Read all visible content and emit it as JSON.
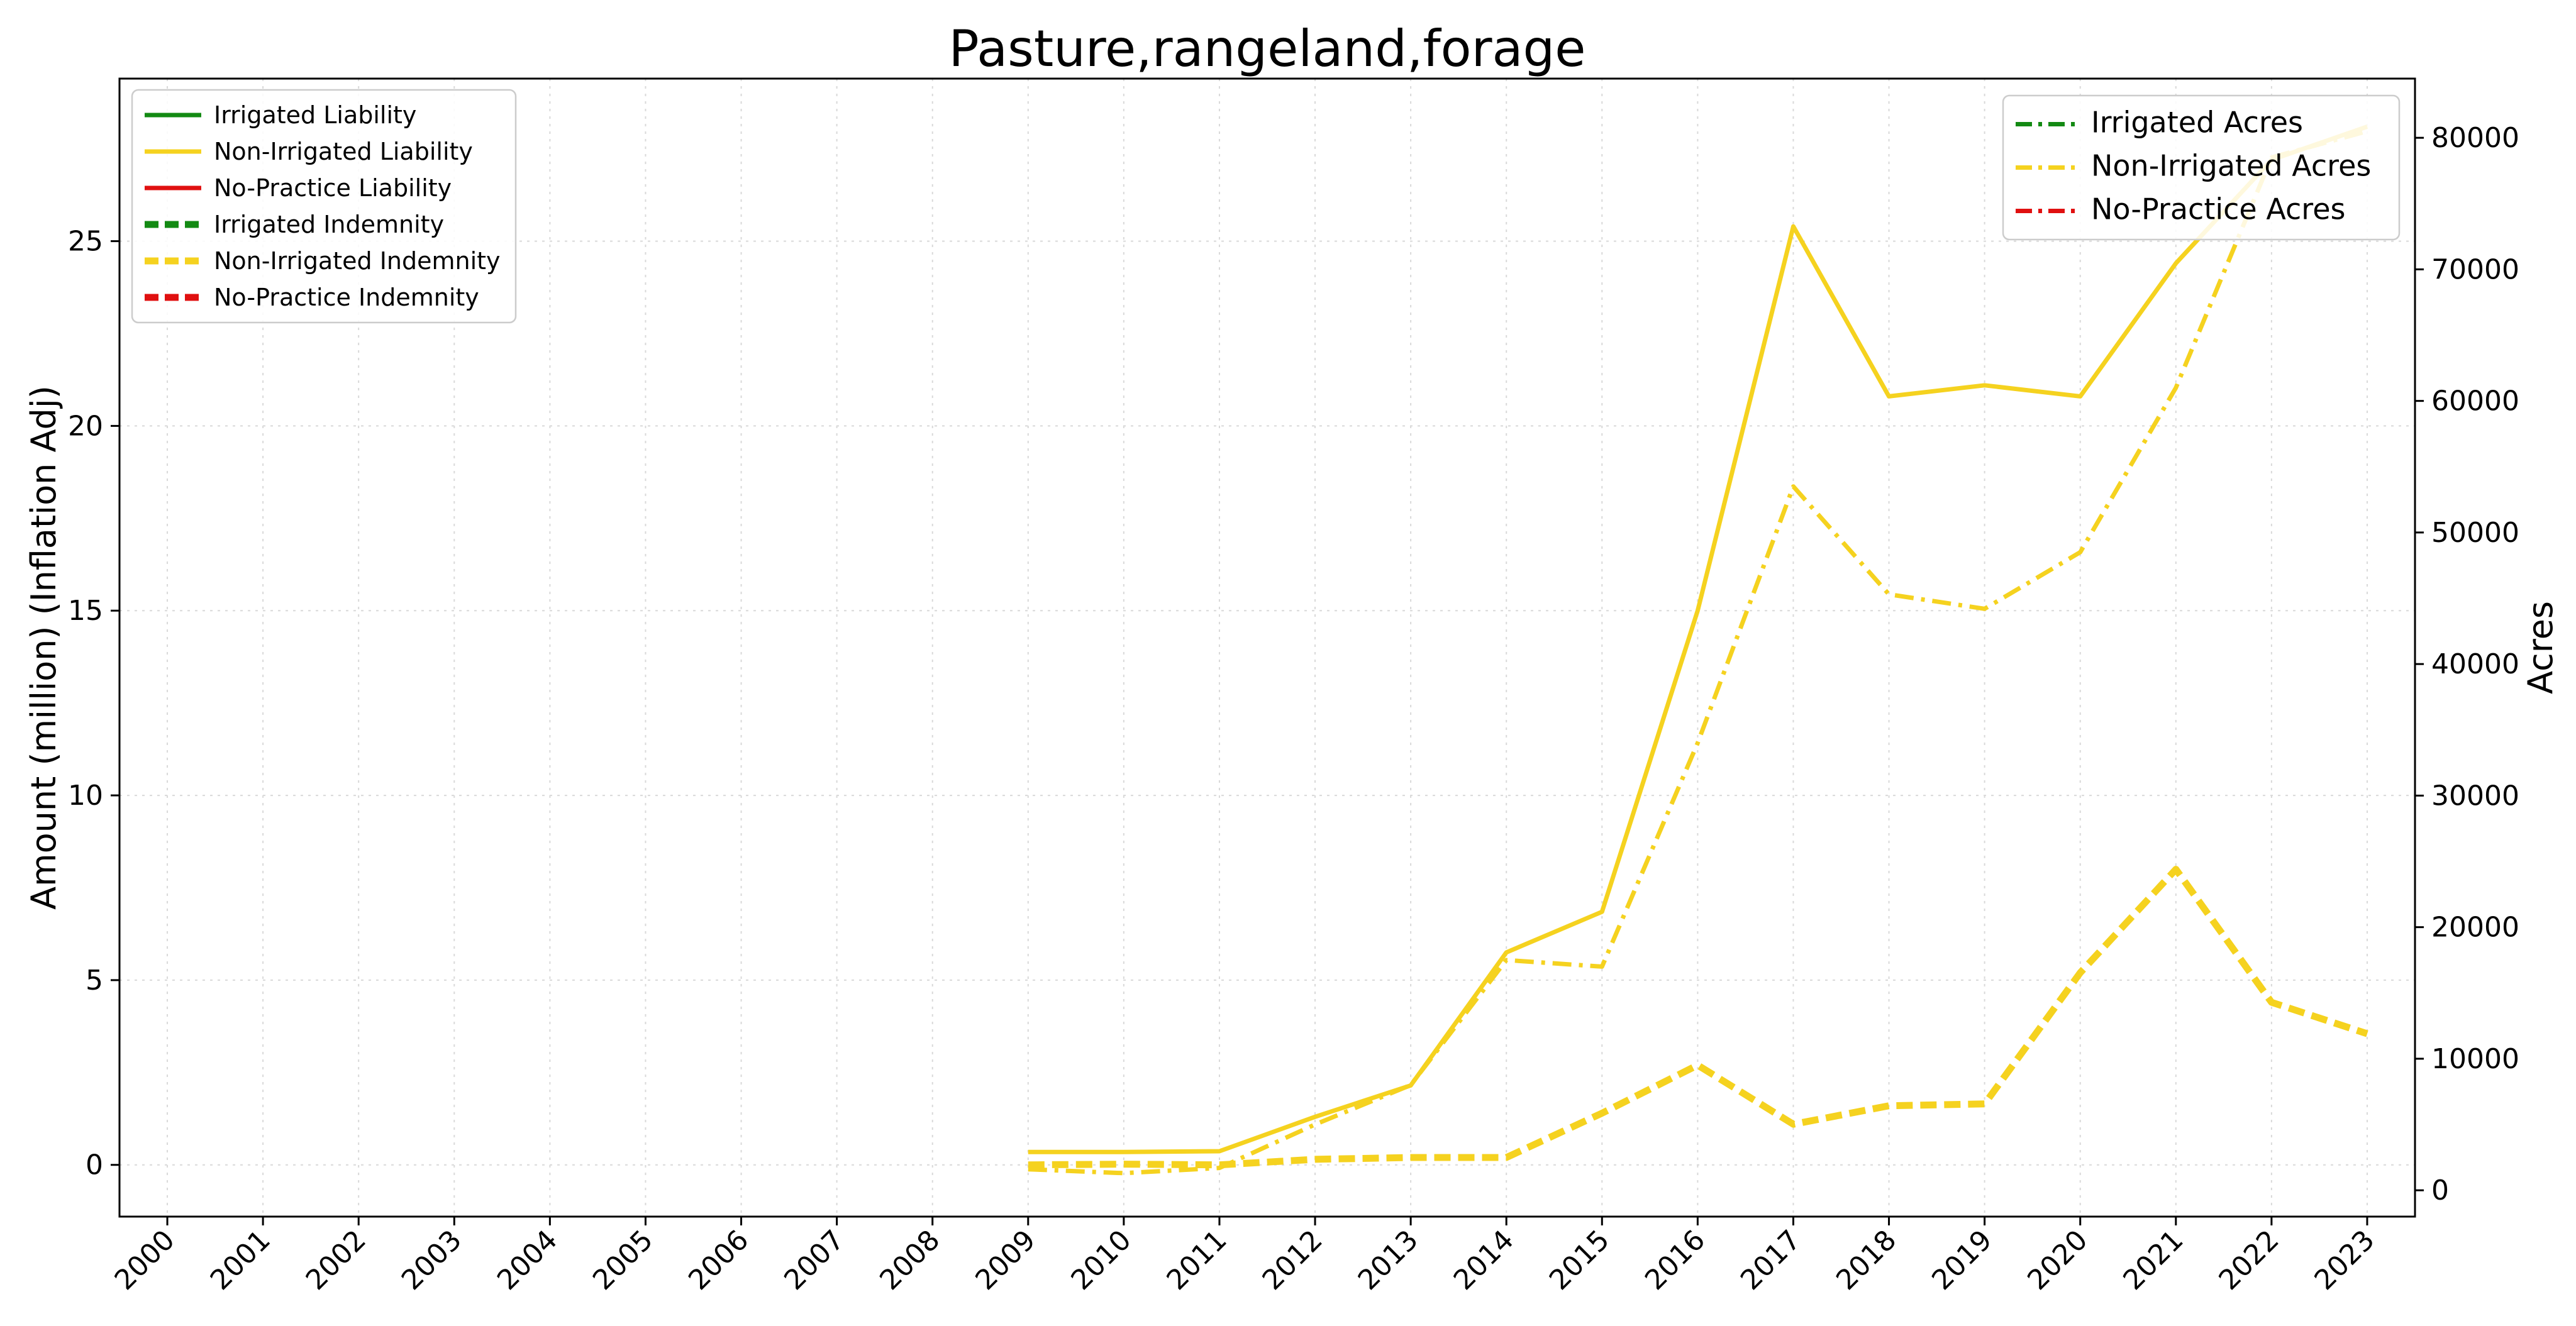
{
  "chart_data": {
    "type": "line",
    "title": "Pasture,rangeland,forage",
    "xlabel": "",
    "ylabel": "Amount (million) (Inflation Adj)",
    "y2label": "Acres",
    "x": [
      "2000",
      "2001",
      "2002",
      "2003",
      "2004",
      "2005",
      "2006",
      "2007",
      "2008",
      "2009",
      "2010",
      "2011",
      "2012",
      "2013",
      "2014",
      "2015",
      "2016",
      "2017",
      "2018",
      "2019",
      "2020",
      "2021",
      "2022",
      "2023"
    ],
    "xlim": [
      2000,
      2023
    ],
    "ylim": [
      -1.4,
      29.4
    ],
    "y2lim": [
      -2000,
      84500
    ],
    "yticks": [
      0,
      5,
      10,
      15,
      20,
      25
    ],
    "y2ticks": [
      0,
      10000,
      20000,
      30000,
      40000,
      50000,
      60000,
      70000,
      80000
    ],
    "grid": true,
    "legend_left_placement": "top-left",
    "legend_right_placement": "top-right",
    "colors": {
      "irrigated": "#138a13",
      "non_irrigated": "#f5d21f",
      "no_practice": "#e01010",
      "grid": "#d9d9d9"
    },
    "series": [
      {
        "name": "Irrigated Liability",
        "axis": "left",
        "style": "solid",
        "color_key": "irrigated",
        "x": [],
        "values": []
      },
      {
        "name": "Non-Irrigated Liability",
        "axis": "left",
        "style": "solid",
        "color_key": "non_irrigated",
        "x": [
          2009,
          2010,
          2011,
          2012,
          2013,
          2014,
          2015,
          2016,
          2017,
          2018,
          2019,
          2020,
          2021,
          2022,
          2023
        ],
        "values": [
          0.35,
          0.35,
          0.37,
          1.3,
          2.15,
          5.75,
          6.85,
          15.0,
          25.4,
          20.8,
          21.1,
          20.8,
          24.4,
          27.2,
          28.1
        ]
      },
      {
        "name": "No-Practice Liability",
        "axis": "left",
        "style": "solid",
        "color_key": "no_practice",
        "x": [],
        "values": []
      },
      {
        "name": "Irrigated Indemnity",
        "axis": "left",
        "style": "dashed",
        "color_key": "irrigated",
        "x": [],
        "values": []
      },
      {
        "name": "Non-Irrigated Indemnity",
        "axis": "left",
        "style": "dashed",
        "color_key": "non_irrigated",
        "x": [
          2009,
          2010,
          2011,
          2012,
          2013,
          2014,
          2015,
          2016,
          2017,
          2018,
          2019,
          2020,
          2021,
          2022,
          2023
        ],
        "values": [
          0.0,
          0.02,
          0.0,
          0.15,
          0.2,
          0.2,
          1.4,
          2.7,
          1.1,
          1.6,
          1.65,
          5.2,
          8.0,
          4.4,
          3.55
        ]
      },
      {
        "name": "No-Practice Indemnity",
        "axis": "left",
        "style": "dashed",
        "color_key": "no_practice",
        "x": [],
        "values": []
      },
      {
        "name": "Irrigated Acres",
        "axis": "right",
        "style": "dashdot",
        "color_key": "irrigated",
        "x": [],
        "values": []
      },
      {
        "name": "Non-Irrigated Acres",
        "axis": "right",
        "style": "dashdot",
        "color_key": "non_irrigated",
        "x": [
          2009,
          2010,
          2011,
          2012,
          2013,
          2014,
          2015,
          2016,
          2017,
          2018,
          2019,
          2020,
          2021,
          2022,
          2023
        ],
        "values": [
          1600,
          1300,
          1700,
          5000,
          8000,
          17500,
          17000,
          34000,
          53500,
          45300,
          44200,
          48500,
          61000,
          78500,
          80500
        ]
      },
      {
        "name": "No-Practice Acres",
        "axis": "right",
        "style": "dashdot",
        "color_key": "no_practice",
        "x": [],
        "values": []
      }
    ],
    "legend_left": [
      "Irrigated Liability",
      "Non-Irrigated Liability",
      "No-Practice Liability",
      "Irrigated Indemnity",
      "Non-Irrigated Indemnity",
      "No-Practice Indemnity"
    ],
    "legend_right": [
      "Irrigated Acres",
      "Non-Irrigated Acres",
      "No-Practice Acres"
    ]
  }
}
